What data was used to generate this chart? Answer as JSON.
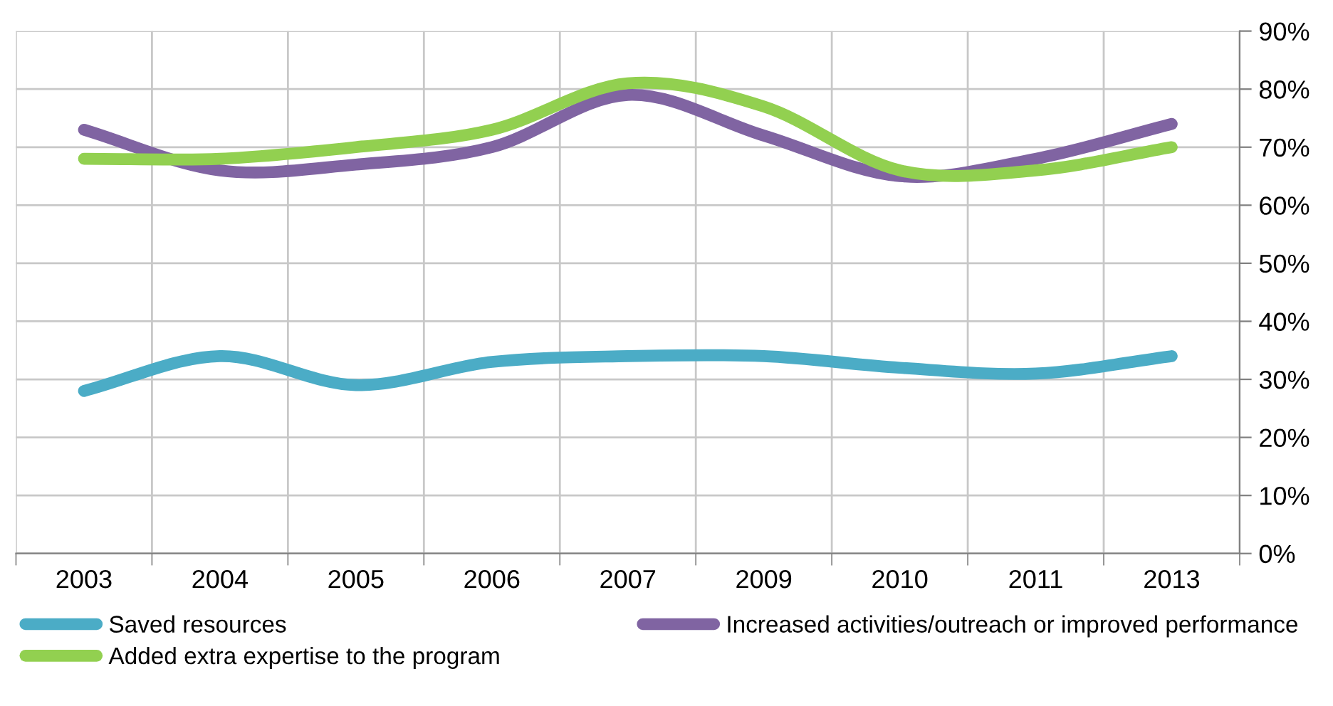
{
  "chart_data": {
    "type": "line",
    "categories": [
      "2003",
      "2004",
      "2005",
      "2006",
      "2007",
      "2009",
      "2010",
      "2011",
      "2013"
    ],
    "series": [
      {
        "name": "Saved resources",
        "color": "#4bacc6",
        "values": [
          28,
          34,
          29,
          33,
          34,
          34,
          32,
          31,
          34
        ]
      },
      {
        "name": "Increased activities/outreach or improved performance",
        "color": "#8064a2",
        "values": [
          73,
          66,
          67,
          70,
          79,
          72,
          65,
          68,
          74
        ]
      },
      {
        "name": "Added extra expertise to the program",
        "color": "#92d050",
        "values": [
          68,
          68,
          70,
          73,
          81,
          77,
          66,
          66,
          70
        ]
      }
    ],
    "ylim": [
      0,
      90
    ],
    "yticks": [
      {
        "value": 0,
        "label": "0%"
      },
      {
        "value": 10,
        "label": "10%"
      },
      {
        "value": 20,
        "label": "20%"
      },
      {
        "value": 30,
        "label": "30%"
      },
      {
        "value": 40,
        "label": "40%"
      },
      {
        "value": 50,
        "label": "50%"
      },
      {
        "value": 60,
        "label": "60%"
      },
      {
        "value": 70,
        "label": "70%"
      },
      {
        "value": 80,
        "label": "80%"
      },
      {
        "value": 90,
        "label": "90%"
      }
    ],
    "grid": true,
    "legend": "bottom",
    "marker": "none",
    "line_style": "solid"
  }
}
